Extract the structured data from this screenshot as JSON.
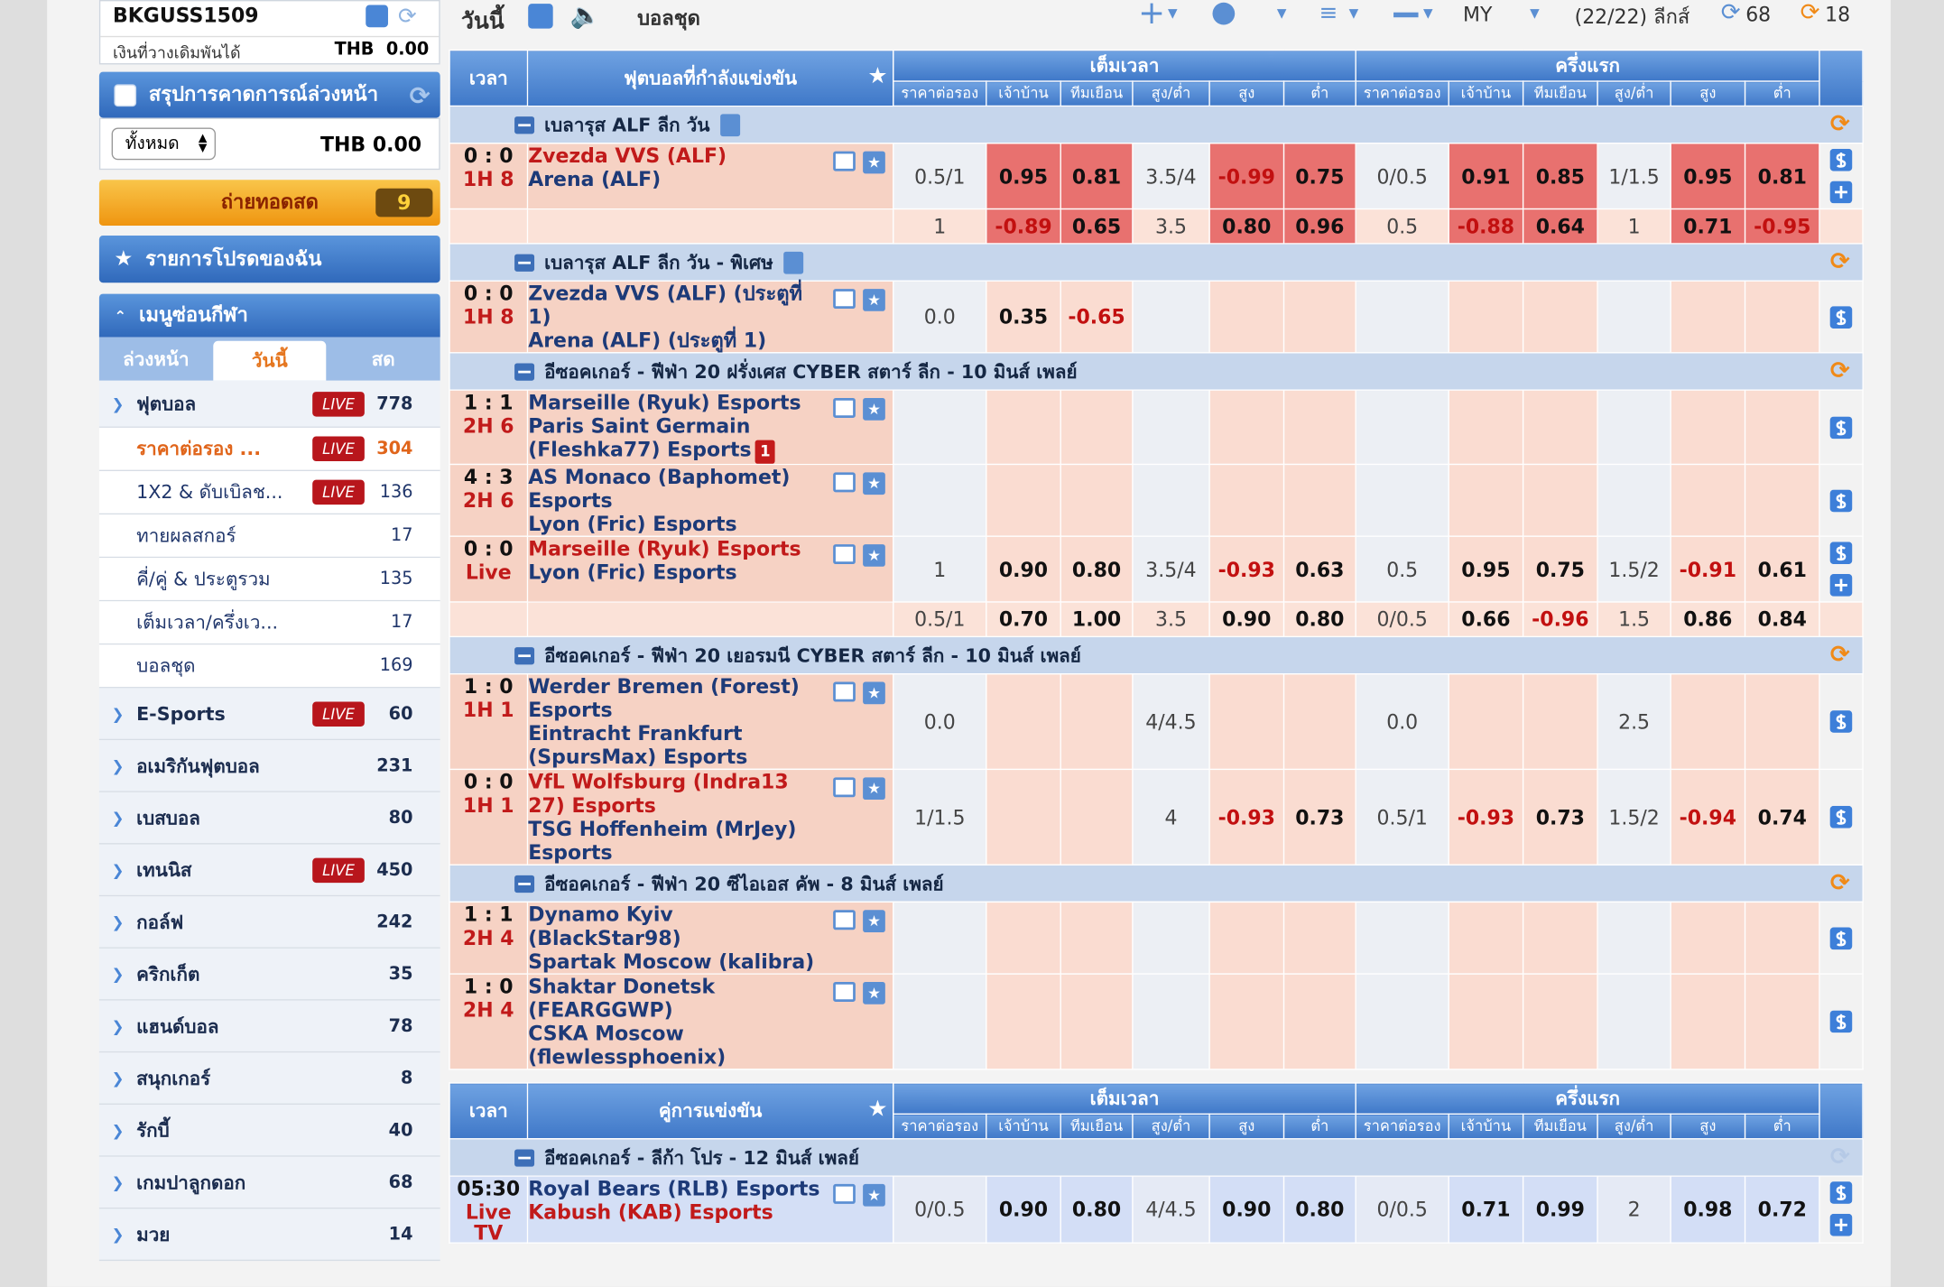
{
  "sidebar": {
    "account": {
      "username": "BKGUSS1509",
      "balance_label": "เงินที่วางเดิมพันได้",
      "balance": "THB  0.00"
    },
    "bet_summary": {
      "title": "สรุปการคาดการณ์ล่วงหน้า",
      "filter": "ทั้งหมด",
      "amount": "THB 0.00"
    },
    "live_stream": {
      "title": "ถ่ายทอดสด",
      "count": 9
    },
    "favorites": {
      "title": "รายการโปรดของฉัน"
    },
    "sports_menu": {
      "title": "เมนูซ่อนกีฬา",
      "tabs": [
        "ล่วงหน้า",
        "วันนี้",
        "สด"
      ],
      "active_tab": 1,
      "live_badge": "LIVE",
      "items": [
        {
          "name": "ฟุตบอล",
          "live": true,
          "count": 778,
          "level": 1
        },
        {
          "name": "ราคาต่อรอง ...",
          "live": true,
          "count": 304,
          "level": 2,
          "active": true
        },
        {
          "name": "1X2 & ดับเบิลช...",
          "live": true,
          "count": 136,
          "level": 2
        },
        {
          "name": "ทายผลสกอร์",
          "live": false,
          "count": 17,
          "level": 2
        },
        {
          "name": "คี่/คู่ & ประตูรวม",
          "live": false,
          "count": 135,
          "level": 2
        },
        {
          "name": "เต็มเวลา/ครึ่งเว...",
          "live": false,
          "count": 17,
          "level": 2
        },
        {
          "name": "บอลชุด",
          "live": false,
          "count": 169,
          "level": 2
        },
        {
          "name": "E-Sports",
          "live": true,
          "count": 60,
          "level": 1
        },
        {
          "name": "อเมริกันฟุตบอล",
          "live": false,
          "count": 231,
          "level": 1
        },
        {
          "name": "เบสบอล",
          "live": false,
          "count": 80,
          "level": 1
        },
        {
          "name": "เทนนิส",
          "live": true,
          "count": 450,
          "level": 1
        },
        {
          "name": "กอล์ฟ",
          "live": false,
          "count": 242,
          "level": 1
        },
        {
          "name": "คริกเก็ต",
          "live": false,
          "count": 35,
          "level": 1
        },
        {
          "name": "แฮนด์บอล",
          "live": false,
          "count": 78,
          "level": 1
        },
        {
          "name": "สนุกเกอร์",
          "live": false,
          "count": 8,
          "level": 1
        },
        {
          "name": "รักบี้",
          "live": false,
          "count": 40,
          "level": 1
        },
        {
          "name": "เกมปาลูกดอก",
          "live": false,
          "count": 68,
          "level": 1
        },
        {
          "name": "มวย",
          "live": false,
          "count": 14,
          "level": 1
        }
      ]
    }
  },
  "topbar": {
    "tab": "วันนี้",
    "mode": "บอลชุด",
    "odds_type": "MY",
    "leagues": "(22/22) ลีกส์",
    "refresh_counts": [
      68,
      18
    ]
  },
  "tables": [
    {
      "style": "live",
      "header": {
        "time": "เวลา",
        "match": "ฟุตบอลที่กำลังแข่งขัน",
        "full": "เต็มเวลา",
        "half": "ครึ่งแรก",
        "cols": [
          "ราคาต่อรอง",
          "เจ้าบ้าน",
          "ทีมเยือน",
          "สูง/ต่ำ",
          "สูง",
          "ต่ำ"
        ]
      },
      "leagues": [
        {
          "name": "เบลารุส ALF ลีก วัน",
          "info": true,
          "matches": [
            {
              "time": "0 : 0",
              "status": "1H 8",
              "teams": [
                "Zvezda VVS (ALF)",
                "Arena (ALF)"
              ],
              "fav": 0,
              "hot": true,
              "rows": [
                [
                  "0.5/1",
                  "0.95",
                  "0.81",
                  "3.5/4",
                  "-0.99",
                  "0.75",
                  "0/0.5",
                  "0.91",
                  "0.85",
                  "1/1.5",
                  "0.95",
                  "0.81"
                ],
                [
                  "1",
                  "-0.89",
                  "0.65",
                  "3.5",
                  "0.80",
                  "0.96",
                  "0.5",
                  "-0.88",
                  "0.64",
                  "1",
                  "0.71",
                  "-0.95"
                ]
              ]
            }
          ]
        },
        {
          "name": "เบลารุส ALF ลีก วัน - พิเศษ",
          "info": true,
          "matches": [
            {
              "time": "0 : 0",
              "status": "1H 8",
              "teams": [
                "Zvezda VVS (ALF) (ประตูที่ 1)",
                "Arena (ALF) (ประตูที่ 1)"
              ],
              "rows": [
                [
                  "0.0",
                  "0.35",
                  "-0.65",
                  null,
                  null,
                  null,
                  null,
                  null,
                  null,
                  null,
                  null,
                  null
                ]
              ]
            }
          ]
        },
        {
          "name": "อีซอคเกอร์ - ฟีฟ่า 20 ฝรั่งเศส CYBER สตาร์ ลีก - 10 มินส์ เพลย์",
          "info": false,
          "matches": [
            {
              "time": "1 : 1",
              "status": "2H 6",
              "teams": [
                "Marseille (Ryuk) Esports",
                "Paris Saint Germain (Fleshka77) Esports"
              ],
              "red_card": "1",
              "rows": [
                [
                  null,
                  null,
                  null,
                  null,
                  null,
                  null,
                  null,
                  null,
                  null,
                  null,
                  null,
                  null
                ]
              ]
            },
            {
              "time": "4 : 3",
              "status": "2H 6",
              "teams": [
                "AS Monaco (Baphomet) Esports",
                "Lyon (Fric) Esports"
              ],
              "rows": [
                [
                  null,
                  null,
                  null,
                  null,
                  null,
                  null,
                  null,
                  null,
                  null,
                  null,
                  null,
                  null
                ]
              ]
            },
            {
              "time": "0 : 0",
              "status": "Live",
              "teams": [
                "Marseille (Ryuk) Esports",
                "Lyon (Fric) Esports"
              ],
              "fav": 0,
              "rows": [
                [
                  "1",
                  "0.90",
                  "0.80",
                  "3.5/4",
                  "-0.93",
                  "0.63",
                  "0.5",
                  "0.95",
                  "0.75",
                  "1.5/2",
                  "-0.91",
                  "0.61"
                ],
                [
                  "0.5/1",
                  "0.70",
                  "1.00",
                  "3.5",
                  "0.90",
                  "0.80",
                  "0/0.5",
                  "0.66",
                  "-0.96",
                  "1.5",
                  "0.86",
                  "0.84"
                ]
              ]
            }
          ]
        },
        {
          "name": "อีซอคเกอร์ - ฟีฟ่า 20 เยอรมนี CYBER สตาร์ ลีก - 10 มินส์ เพลย์",
          "info": false,
          "matches": [
            {
              "time": "1 : 0",
              "status": "1H 1",
              "teams": [
                "Werder Bremen (Forest) Esports",
                "Eintracht Frankfurt (SpursMax) Esports"
              ],
              "rows": [
                [
                  "0.0",
                  null,
                  null,
                  "4/4.5",
                  null,
                  null,
                  "0.0",
                  null,
                  null,
                  "2.5",
                  null,
                  null
                ]
              ]
            },
            {
              "time": "0 : 0",
              "status": "1H 1",
              "teams": [
                "VfL Wolfsburg (Indra13 27) Esports",
                "TSG Hoffenheim (MrJey) Esports"
              ],
              "fav": 0,
              "rows": [
                [
                  "1/1.5",
                  null,
                  null,
                  "4",
                  "-0.93",
                  "0.73",
                  "0.5/1",
                  "-0.93",
                  "0.73",
                  "1.5/2",
                  "-0.94",
                  "0.74"
                ]
              ]
            }
          ]
        },
        {
          "name": "อีซอคเกอร์ - ฟีฟ่า 20 ซีไอเอส คัพ - 8 มินส์ เพลย์",
          "info": false,
          "matches": [
            {
              "time": "1 : 1",
              "status": "2H 4",
              "teams": [
                "Dynamo Kyiv (BlackStar98)",
                "Spartak Moscow (kalibra)"
              ],
              "rows": [
                [
                  null,
                  null,
                  null,
                  null,
                  null,
                  null,
                  null,
                  null,
                  null,
                  null,
                  null,
                  null
                ]
              ]
            },
            {
              "time": "1 : 0",
              "status": "2H 4",
              "teams": [
                "Shaktar Donetsk (FEARGGWP)",
                "CSKA Moscow (flewlessphoenix)"
              ],
              "rows": [
                [
                  null,
                  null,
                  null,
                  null,
                  null,
                  null,
                  null,
                  null,
                  null,
                  null,
                  null,
                  null
                ]
              ]
            }
          ]
        }
      ]
    },
    {
      "style": "upcoming",
      "header": {
        "time": "เวลา",
        "match": "คู่การแข่งขัน",
        "full": "เต็มเวลา",
        "half": "ครึ่งแรก",
        "cols": [
          "ราคาต่อรอง",
          "เจ้าบ้าน",
          "ทีมเยือน",
          "สูง/ต่ำ",
          "สูง",
          "ต่ำ"
        ]
      },
      "leagues": [
        {
          "name": "อีซอคเกอร์ - ลีก้า โปร - 12 มินส์ เพลย์",
          "info": false,
          "matches": [
            {
              "time": "05:30",
              "status": "Live",
              "tv": "TV",
              "teams": [
                "Royal Bears (RLB) Esports",
                "Kabush (KAB) Esports"
              ],
              "fav": 1,
              "rows": [
                [
                  "0/0.5",
                  "0.90",
                  "0.80",
                  "4/4.5",
                  "0.90",
                  "0.80",
                  "0/0.5",
                  "0.71",
                  "0.99",
                  "2",
                  "0.98",
                  "0.72"
                ]
              ]
            }
          ]
        }
      ]
    }
  ]
}
